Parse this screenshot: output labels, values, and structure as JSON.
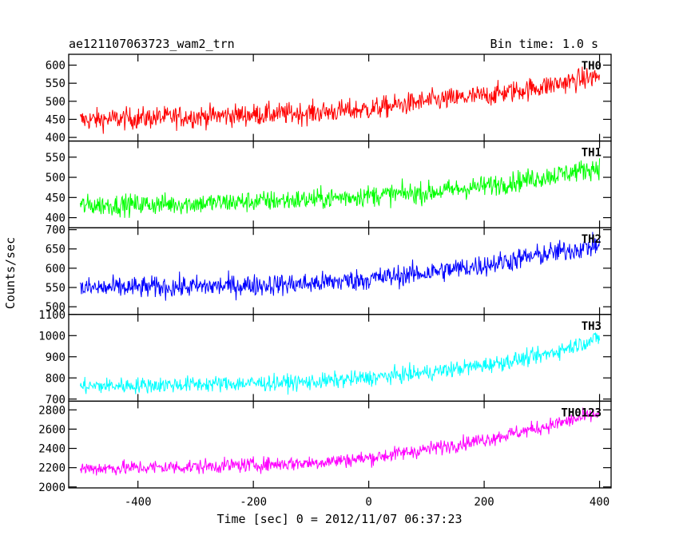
{
  "header": {
    "object_name": "ae121107063723_wam2_trn",
    "bin_time": "Bin time: 1.0 s"
  },
  "chart_data": {
    "type": "line",
    "ylabel": "Counts/sec",
    "xlabel": "Time [sec] 0 = 2012/11/07 06:37:23",
    "xlim": [
      -520,
      420
    ],
    "x_ticks": [
      -400,
      -200,
      0,
      200,
      400
    ],
    "x_range": [
      -500,
      400
    ],
    "grid": false,
    "panels": [
      {
        "name": "TH0",
        "color": "#ff0000",
        "ylim": [
          390,
          630
        ],
        "y_ticks": [
          400,
          450,
          500,
          550,
          600
        ],
        "trend": [
          [
            -500,
            448
          ],
          [
            -300,
            458
          ],
          [
            -100,
            468
          ],
          [
            0,
            478
          ],
          [
            100,
            500
          ],
          [
            200,
            515
          ],
          [
            300,
            540
          ],
          [
            400,
            570
          ]
        ],
        "noise": 28
      },
      {
        "name": "TH1",
        "color": "#00ff00",
        "ylim": [
          375,
          590
        ],
        "y_ticks": [
          400,
          450,
          500,
          550
        ],
        "trend": [
          [
            -500,
            430
          ],
          [
            -300,
            435
          ],
          [
            -100,
            445
          ],
          [
            0,
            455
          ],
          [
            100,
            462
          ],
          [
            200,
            478
          ],
          [
            300,
            500
          ],
          [
            400,
            525
          ]
        ],
        "noise": 24
      },
      {
        "name": "TH2",
        "color": "#0000ff",
        "ylim": [
          480,
          705
        ],
        "y_ticks": [
          500,
          550,
          600,
          650,
          700
        ],
        "trend": [
          [
            -500,
            548
          ],
          [
            -300,
            552
          ],
          [
            -100,
            560
          ],
          [
            0,
            572
          ],
          [
            100,
            588
          ],
          [
            200,
            608
          ],
          [
            300,
            635
          ],
          [
            400,
            660
          ]
        ],
        "noise": 26
      },
      {
        "name": "TH3",
        "color": "#00ffff",
        "ylim": [
          690,
          1100
        ],
        "y_ticks": [
          700,
          800,
          900,
          1000,
          1100
        ],
        "trend": [
          [
            -500,
            760
          ],
          [
            -300,
            770
          ],
          [
            -100,
            780
          ],
          [
            0,
            800
          ],
          [
            100,
            825
          ],
          [
            200,
            860
          ],
          [
            300,
            905
          ],
          [
            400,
            990
          ]
        ],
        "noise": 35
      },
      {
        "name": "TH0123",
        "color": "#ff00ff",
        "ylim": [
          1990,
          2890
        ],
        "y_ticks": [
          2000,
          2200,
          2400,
          2600,
          2800
        ],
        "trend": [
          [
            -500,
            2190
          ],
          [
            -300,
            2210
          ],
          [
            -100,
            2250
          ],
          [
            0,
            2300
          ],
          [
            100,
            2390
          ],
          [
            200,
            2490
          ],
          [
            300,
            2620
          ],
          [
            400,
            2760
          ]
        ],
        "noise": 70
      }
    ]
  }
}
